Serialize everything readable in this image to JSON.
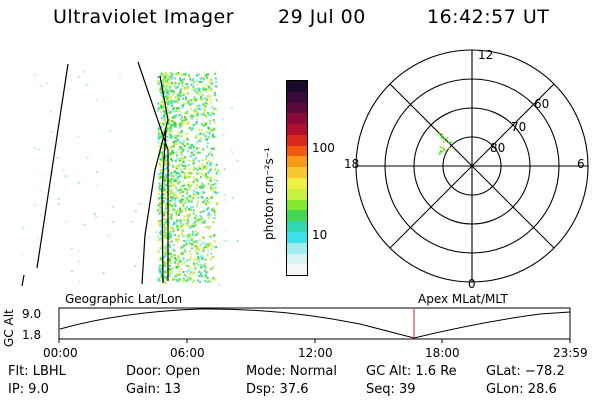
{
  "header": {
    "instrument": "Ultraviolet Imager",
    "date": "29 Jul 00",
    "time": "16:42:57 UT"
  },
  "colorbar": {
    "label": "photon cm⁻²s⁻¹",
    "tick_labels": [
      "100",
      "10"
    ],
    "colors": [
      "#1a0a2a",
      "#3a0a3a",
      "#5a0a3a",
      "#8a0a3a",
      "#b01030",
      "#d82a1a",
      "#f05a10",
      "#f89a18",
      "#f8c830",
      "#f0f040",
      "#c8f040",
      "#88e830",
      "#40d850",
      "#30d8b0",
      "#40e0e8",
      "#a0eef0",
      "#d8f4f4",
      "#f2f8f8"
    ]
  },
  "polar_plot": {
    "mlt_labels": {
      "top": "12",
      "left": "18",
      "right": "6",
      "bottom": "0"
    },
    "lat_labels": [
      "60",
      "70",
      "80"
    ]
  },
  "timeline": {
    "y_axis_label": "GC Alt",
    "y_ticks": [
      "9.0",
      "1.8"
    ],
    "left_title": "Geographic Lat/Lon",
    "right_title": "Apex MLat/MLT",
    "x_ticks": [
      "00:00",
      "06:00",
      "12:00",
      "18:00",
      "23:59"
    ],
    "marker_color": "#cc2222"
  },
  "info": {
    "filter": "Flt: LBHL",
    "ip": "IP:  9.0",
    "door": "Door: Open",
    "gain": "Gain: 13",
    "mode": "Mode: Normal",
    "dsp": "Dsp:   37.6",
    "gc_alt": "GC Alt: 1.6 Re",
    "seq": "Seq: 39",
    "glat": "GLat:  −78.2",
    "glon": "GLon:  28.6"
  }
}
